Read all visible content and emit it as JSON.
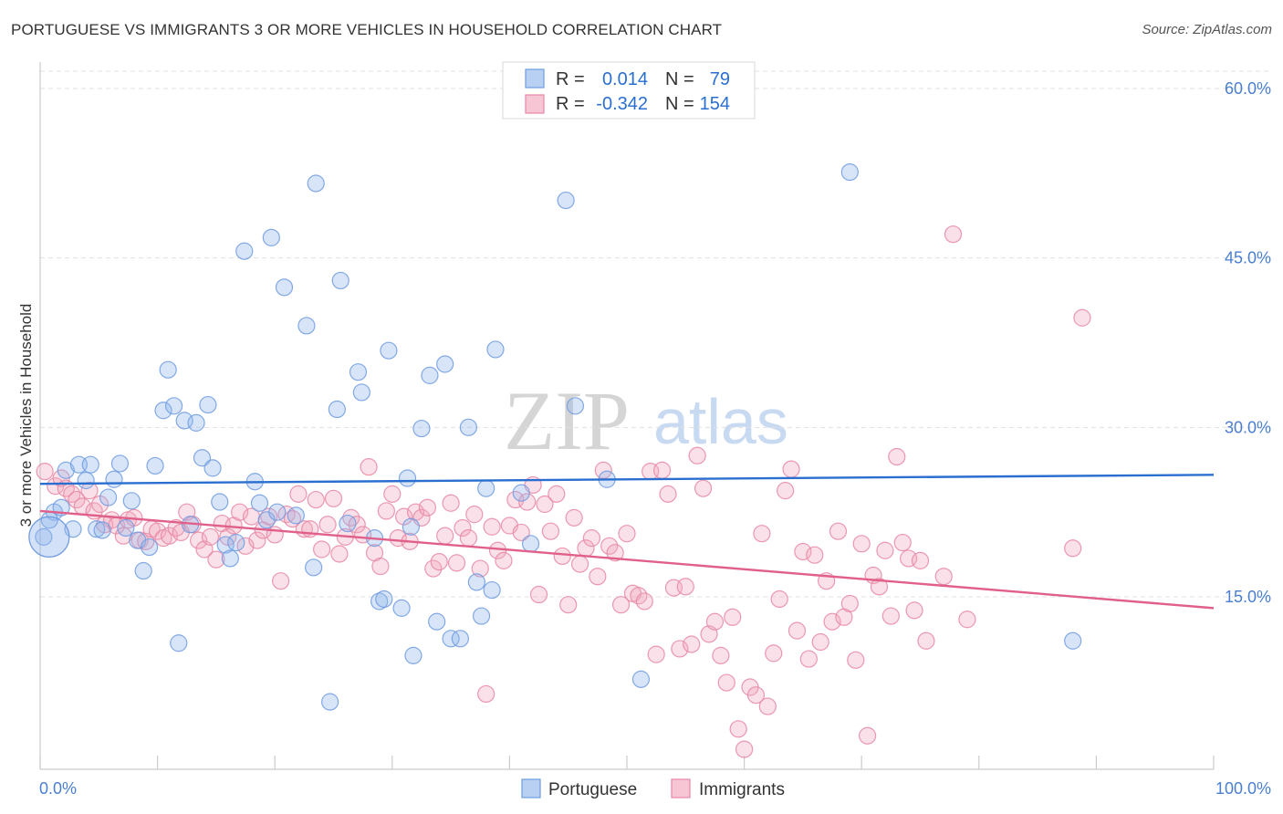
{
  "title": "PORTUGUESE VS IMMIGRANTS 3 OR MORE VEHICLES IN HOUSEHOLD CORRELATION CHART",
  "source": "Source: ZipAtlas.com",
  "watermark": {
    "zip": "ZIP",
    "atlas": "atlas"
  },
  "chart_data": {
    "type": "scatter",
    "title": "PORTUGUESE VS IMMIGRANTS 3 OR MORE VEHICLES IN HOUSEHOLD CORRELATION CHART",
    "xlabel": "",
    "ylabel": "3 or more Vehicles in Household",
    "xlim": [
      0,
      100
    ],
    "ylim": [
      0,
      63
    ],
    "x_tick_labels": [
      "0.0%",
      "100.0%"
    ],
    "y_ticks": [
      15,
      30,
      45,
      60
    ],
    "y_tick_labels": [
      "15.0%",
      "30.0%",
      "45.0%",
      "60.0%"
    ],
    "grid": true,
    "legend_position": "top-center",
    "stats": [
      {
        "r_label": "R =",
        "r": "0.014",
        "n_label": "N =",
        "n": "79"
      },
      {
        "r_label": "R =",
        "r": "-0.342",
        "n_label": "N =",
        "n": "154"
      }
    ],
    "series": [
      {
        "name": "Portuguese",
        "color": "#8fb4ea",
        "stroke": "#6f9be0",
        "trend_color": "#2a6fd0",
        "trend": {
          "x": [
            0,
            100
          ],
          "y": [
            25.0,
            25.8
          ]
        },
        "points": [
          [
            0.3,
            20.3
          ],
          [
            1.2,
            22.5
          ],
          [
            0.8,
            21.8
          ],
          [
            1.8,
            22.9
          ],
          [
            2.2,
            26.2
          ],
          [
            2.8,
            21.0
          ],
          [
            3.3,
            26.7
          ],
          [
            3.9,
            25.3
          ],
          [
            4.3,
            26.7
          ],
          [
            4.8,
            21.0
          ],
          [
            5.3,
            20.9
          ],
          [
            5.8,
            23.8
          ],
          [
            6.3,
            25.4
          ],
          [
            6.8,
            26.8
          ],
          [
            7.3,
            21.1
          ],
          [
            7.8,
            23.5
          ],
          [
            8.3,
            20.0
          ],
          [
            8.8,
            17.3
          ],
          [
            9.3,
            19.4
          ],
          [
            9.8,
            26.6
          ],
          [
            10.5,
            31.5
          ],
          [
            10.9,
            35.1
          ],
          [
            11.4,
            31.9
          ],
          [
            11.8,
            10.9
          ],
          [
            12.3,
            30.6
          ],
          [
            12.8,
            21.4
          ],
          [
            13.3,
            30.4
          ],
          [
            13.8,
            27.3
          ],
          [
            14.3,
            32.0
          ],
          [
            14.7,
            26.4
          ],
          [
            15.3,
            23.4
          ],
          [
            15.8,
            19.6
          ],
          [
            16.2,
            18.4
          ],
          [
            16.7,
            19.8
          ],
          [
            17.4,
            45.6
          ],
          [
            18.3,
            25.2
          ],
          [
            18.7,
            23.3
          ],
          [
            19.3,
            21.8
          ],
          [
            19.7,
            46.8
          ],
          [
            20.2,
            22.5
          ],
          [
            20.8,
            42.4
          ],
          [
            21.8,
            22.2
          ],
          [
            22.7,
            39.0
          ],
          [
            23.3,
            17.6
          ],
          [
            23.5,
            51.6
          ],
          [
            24.7,
            5.7
          ],
          [
            25.3,
            31.6
          ],
          [
            25.6,
            43.0
          ],
          [
            26.2,
            21.5
          ],
          [
            27.1,
            34.9
          ],
          [
            27.4,
            33.1
          ],
          [
            28.5,
            20.2
          ],
          [
            28.9,
            14.6
          ],
          [
            29.3,
            14.8
          ],
          [
            29.7,
            36.8
          ],
          [
            30.8,
            14.0
          ],
          [
            31.3,
            25.5
          ],
          [
            31.6,
            21.2
          ],
          [
            31.8,
            9.8
          ],
          [
            32.5,
            29.9
          ],
          [
            33.2,
            34.6
          ],
          [
            33.8,
            12.8
          ],
          [
            34.5,
            35.6
          ],
          [
            35.0,
            11.3
          ],
          [
            35.8,
            11.3
          ],
          [
            36.5,
            30.0
          ],
          [
            37.2,
            16.3
          ],
          [
            37.6,
            13.3
          ],
          [
            38.0,
            24.6
          ],
          [
            38.5,
            15.6
          ],
          [
            38.8,
            36.9
          ],
          [
            41.0,
            24.2
          ],
          [
            41.8,
            19.7
          ],
          [
            44.8,
            50.1
          ],
          [
            45.6,
            31.9
          ],
          [
            48.3,
            25.4
          ],
          [
            51.2,
            7.7
          ],
          [
            69.0,
            52.6
          ],
          [
            88.0,
            11.1
          ]
        ],
        "big_point": [
          0.3,
          20.3
        ]
      },
      {
        "name": "Immigrants",
        "color": "#f2a7bd",
        "stroke": "#e887a5",
        "trend_color": "#e0608a",
        "trend": {
          "x": [
            0,
            100
          ],
          "y": [
            22.6,
            14.0
          ]
        },
        "points": [
          [
            0.4,
            26.1
          ],
          [
            1.3,
            24.8
          ],
          [
            1.8,
            25.5
          ],
          [
            2.2,
            24.6
          ],
          [
            2.7,
            24.1
          ],
          [
            3.1,
            23.6
          ],
          [
            3.6,
            23.0
          ],
          [
            4.2,
            24.4
          ],
          [
            4.6,
            22.6
          ],
          [
            5.1,
            23.2
          ],
          [
            5.5,
            21.4
          ],
          [
            6.1,
            21.8
          ],
          [
            6.5,
            21.3
          ],
          [
            7.1,
            20.4
          ],
          [
            7.5,
            21.8
          ],
          [
            8.0,
            22.0
          ],
          [
            8.5,
            20.0
          ],
          [
            9.0,
            19.9
          ],
          [
            9.5,
            21.0
          ],
          [
            10.0,
            20.8
          ],
          [
            10.5,
            20.2
          ],
          [
            11.0,
            20.4
          ],
          [
            11.6,
            21.1
          ],
          [
            12.0,
            20.7
          ],
          [
            12.5,
            22.5
          ],
          [
            13.0,
            21.4
          ],
          [
            13.5,
            20.0
          ],
          [
            14.0,
            19.2
          ],
          [
            14.5,
            20.3
          ],
          [
            15.0,
            18.3
          ],
          [
            15.5,
            21.5
          ],
          [
            16.0,
            20.3
          ],
          [
            16.5,
            21.3
          ],
          [
            17.0,
            22.5
          ],
          [
            17.5,
            19.5
          ],
          [
            18.0,
            22.1
          ],
          [
            18.5,
            20.0
          ],
          [
            19.0,
            20.9
          ],
          [
            19.5,
            22.1
          ],
          [
            20.0,
            20.5
          ],
          [
            20.5,
            16.4
          ],
          [
            21.0,
            22.3
          ],
          [
            21.5,
            21.9
          ],
          [
            22.0,
            24.1
          ],
          [
            22.5,
            21.0
          ],
          [
            23.0,
            21.0
          ],
          [
            23.5,
            23.6
          ],
          [
            24.0,
            19.2
          ],
          [
            24.5,
            21.4
          ],
          [
            25.0,
            23.7
          ],
          [
            25.5,
            18.8
          ],
          [
            26.0,
            20.3
          ],
          [
            26.5,
            22.0
          ],
          [
            27.0,
            21.4
          ],
          [
            27.5,
            20.5
          ],
          [
            28.0,
            26.5
          ],
          [
            28.5,
            18.9
          ],
          [
            29.0,
            17.7
          ],
          [
            29.5,
            22.6
          ],
          [
            30.0,
            24.1
          ],
          [
            30.5,
            20.2
          ],
          [
            31.0,
            22.1
          ],
          [
            31.5,
            19.9
          ],
          [
            32.0,
            22.5
          ],
          [
            32.5,
            22.0
          ],
          [
            33.0,
            22.9
          ],
          [
            33.5,
            17.5
          ],
          [
            34.0,
            18.1
          ],
          [
            34.5,
            20.4
          ],
          [
            35.0,
            23.3
          ],
          [
            35.5,
            18.0
          ],
          [
            36.0,
            21.1
          ],
          [
            36.5,
            20.2
          ],
          [
            37.0,
            22.3
          ],
          [
            37.5,
            17.5
          ],
          [
            38.0,
            6.4
          ],
          [
            38.5,
            21.2
          ],
          [
            39.0,
            19.1
          ],
          [
            39.5,
            18.2
          ],
          [
            40.0,
            21.3
          ],
          [
            40.5,
            23.6
          ],
          [
            41.0,
            20.7
          ],
          [
            41.5,
            23.4
          ],
          [
            42.0,
            24.9
          ],
          [
            42.5,
            15.2
          ],
          [
            43.0,
            23.2
          ],
          [
            43.5,
            20.8
          ],
          [
            44.0,
            24.1
          ],
          [
            44.5,
            18.6
          ],
          [
            45.0,
            14.3
          ],
          [
            45.5,
            22.0
          ],
          [
            46.0,
            17.9
          ],
          [
            46.5,
            19.3
          ],
          [
            47.0,
            20.2
          ],
          [
            47.5,
            16.8
          ],
          [
            48.0,
            26.2
          ],
          [
            48.5,
            19.5
          ],
          [
            49.0,
            18.9
          ],
          [
            49.5,
            14.3
          ],
          [
            50.0,
            20.6
          ],
          [
            50.5,
            15.3
          ],
          [
            51.0,
            15.1
          ],
          [
            51.5,
            14.6
          ],
          [
            52.0,
            26.1
          ],
          [
            52.5,
            9.9
          ],
          [
            53.0,
            26.2
          ],
          [
            53.5,
            24.1
          ],
          [
            54.0,
            15.8
          ],
          [
            54.5,
            10.4
          ],
          [
            55.0,
            15.9
          ],
          [
            55.5,
            10.8
          ],
          [
            56.0,
            27.5
          ],
          [
            56.5,
            24.6
          ],
          [
            57.0,
            11.7
          ],
          [
            57.5,
            12.8
          ],
          [
            58.0,
            9.8
          ],
          [
            58.5,
            7.4
          ],
          [
            59.0,
            13.2
          ],
          [
            59.5,
            3.3
          ],
          [
            60.0,
            1.5
          ],
          [
            60.5,
            7.0
          ],
          [
            61.0,
            6.3
          ],
          [
            61.5,
            20.6
          ],
          [
            62.0,
            5.3
          ],
          [
            62.5,
            10.0
          ],
          [
            63.0,
            14.8
          ],
          [
            63.5,
            24.4
          ],
          [
            64.0,
            26.3
          ],
          [
            64.5,
            12.0
          ],
          [
            65.0,
            19.0
          ],
          [
            65.5,
            9.5
          ],
          [
            66.0,
            18.7
          ],
          [
            66.5,
            11.0
          ],
          [
            67.0,
            16.4
          ],
          [
            67.5,
            12.8
          ],
          [
            68.0,
            20.8
          ],
          [
            68.5,
            13.2
          ],
          [
            69.0,
            14.4
          ],
          [
            69.5,
            9.4
          ],
          [
            70.0,
            19.7
          ],
          [
            70.5,
            2.7
          ],
          [
            71.0,
            16.9
          ],
          [
            71.5,
            15.9
          ],
          [
            72.0,
            19.1
          ],
          [
            72.5,
            13.3
          ],
          [
            73.0,
            27.4
          ],
          [
            73.5,
            19.8
          ],
          [
            74.0,
            18.4
          ],
          [
            74.5,
            13.8
          ],
          [
            75.0,
            18.2
          ],
          [
            75.5,
            11.1
          ],
          [
            77.0,
            16.8
          ],
          [
            77.8,
            47.1
          ],
          [
            79.0,
            13.0
          ],
          [
            88.0,
            19.3
          ],
          [
            88.8,
            39.7
          ]
        ]
      }
    ]
  },
  "legend_bottom": [
    "Portuguese",
    "Immigrants"
  ],
  "colors": {
    "blue_text": "#2a6fd0",
    "pink_text": "#e0608a",
    "axis_tick_text": "#4a7fd0",
    "grid": "#e0e0e0"
  }
}
